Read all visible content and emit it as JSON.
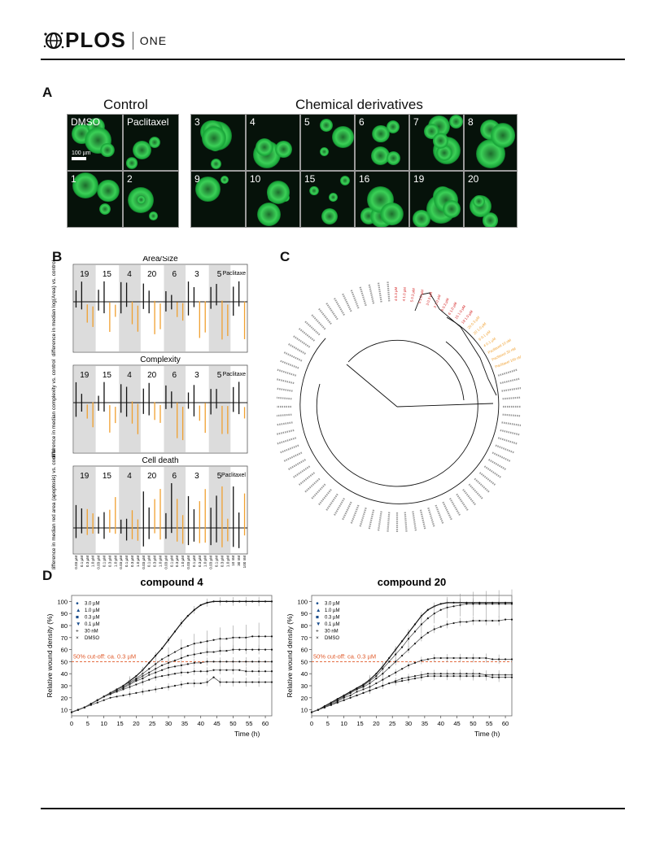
{
  "header": {
    "logo_text": "PLOS",
    "journal": "ONE"
  },
  "panel_a": {
    "letter": "A",
    "control_title": "Control",
    "derivatives_title": "Chemical derivatives",
    "scale_label": "100 µm",
    "tiles": [
      "DMSO",
      "Paclitaxel",
      "3",
      "4",
      "5",
      "6",
      "7",
      "8",
      "1",
      "2",
      "9",
      "10",
      "15",
      "16",
      "19",
      "20"
    ]
  },
  "panel_b": {
    "letter": "B",
    "rows": [
      {
        "title": "Area/Size",
        "ylabel": "difference in median log(Area) vs. control"
      },
      {
        "title": "Complexity",
        "ylabel": "difference in median complexity vs. control"
      },
      {
        "title": "Cell death",
        "ylabel": "difference in median red area (apoptosis) vs. control"
      }
    ],
    "groups": [
      "19",
      "15",
      "4",
      "20",
      "6",
      "3",
      "5"
    ],
    "paclitaxel_labels": [
      "Paclitaxe",
      "Paclitaxe",
      "Paclitaxel"
    ],
    "x_ticks": [
      "0.03 µM",
      "0.1 µM",
      "0.3 µM",
      "1.0 µM",
      "0.03 µM",
      "0.1 µM",
      "0.3 µM",
      "1.0 µM",
      "0.03 µM",
      "0.1 µM",
      "0.3 µM",
      "1.0 µM",
      "0.03 µM",
      "0.1 µM",
      "0.3 µM",
      "1.0 µM",
      "0.03 µM",
      "0.1 µM",
      "0.3 µM",
      "1.0 µM",
      "0.03 µM",
      "0.1 µM",
      "0.3 µM",
      "1.0 µM",
      "0.03 µM",
      "0.1 µM",
      "0.3 µM",
      "1.0 µM",
      "10 nM",
      "30 nM",
      "100 nM"
    ],
    "colors": {
      "black": "#111111",
      "orange": "#f0a030",
      "shade": "#dcdcdc"
    }
  },
  "panel_c": {
    "letter": "C",
    "leaves_right_red": [
      "4 0.3 µM",
      "4 1.0 µM",
      "5 0.3 µM",
      "5 1.0 µM",
      "3 0.3 µM",
      "3 1.0 µM",
      "6 0.3 µM",
      "6 1.0 µM",
      "15 1.0 µM",
      "19 1.0 µM"
    ],
    "leaves_right_orange": [
      "20 0.3 µM",
      "20 1.0 µM",
      "6 0.1 µM",
      "4 0.1 µM",
      "Paclitaxel 10 nM",
      "Paclitaxel 30 nM",
      "Paclitaxel 100 nM"
    ],
    "colors": {
      "red": "#d42020",
      "orange": "#f0a030",
      "gray": "#9a9a9a"
    }
  },
  "panel_d": {
    "letter": "D",
    "legend": [
      "3.0 µM",
      "1.0 µM",
      "0.3 µM",
      "0.1 µM",
      "30 nM",
      "DMSO"
    ],
    "cutoff_label": "50% cut-off: ca. 0.3 µM",
    "ylabel": "Relative wound density (%)",
    "xlabel": "Time (h)",
    "x_ticks": [
      "0",
      "5",
      "10",
      "15",
      "20",
      "25",
      "30",
      "35",
      "40",
      "45",
      "50",
      "55",
      "60"
    ],
    "y_ticks": [
      "10",
      "20",
      "30",
      "40",
      "50",
      "60",
      "70",
      "80",
      "90",
      "100"
    ],
    "cutoff_color": "#e05a2a"
  },
  "chart_data": [
    {
      "type": "line",
      "title": "compound 4",
      "xlabel": "Time (h)",
      "ylabel": "Relative wound density (%)",
      "xlim": [
        0,
        62
      ],
      "ylim": [
        5,
        105
      ],
      "x": [
        0,
        2,
        4,
        6,
        8,
        10,
        12,
        14,
        16,
        18,
        20,
        22,
        24,
        26,
        28,
        30,
        32,
        34,
        36,
        38,
        40,
        42,
        44,
        46,
        48,
        50,
        52,
        54,
        56,
        58,
        60,
        62
      ],
      "series": [
        {
          "name": "DMSO",
          "values": [
            8,
            10,
            12,
            15,
            18,
            21,
            24,
            27,
            30,
            34,
            38,
            43,
            49,
            55,
            61,
            68,
            75,
            82,
            88,
            93,
            97,
            99,
            100,
            100,
            100,
            100,
            100,
            100,
            100,
            100,
            100,
            100
          ]
        },
        {
          "name": "30 nM",
          "values": [
            8,
            10,
            12,
            15,
            18,
            21,
            24,
            27,
            30,
            33,
            36,
            40,
            44,
            48,
            52,
            55,
            58,
            61,
            63,
            65,
            66,
            67,
            68,
            69,
            69,
            70,
            70,
            70,
            71,
            71,
            71,
            71
          ]
        },
        {
          "name": "0.1 µM",
          "values": [
            8,
            10,
            12,
            15,
            18,
            21,
            24,
            27,
            29,
            32,
            35,
            38,
            41,
            44,
            47,
            49,
            51,
            53,
            55,
            56,
            57,
            58,
            58,
            59,
            59,
            60,
            60,
            60,
            60,
            60,
            60,
            60
          ]
        },
        {
          "name": "0.3 µM",
          "values": [
            8,
            10,
            12,
            15,
            18,
            21,
            23,
            26,
            28,
            31,
            34,
            36,
            39,
            41,
            43,
            45,
            46,
            47,
            48,
            49,
            49,
            50,
            50,
            50,
            50,
            50,
            50,
            50,
            50,
            50,
            50,
            50
          ]
        },
        {
          "name": "1.0 µM",
          "values": [
            8,
            10,
            12,
            15,
            18,
            21,
            23,
            25,
            27,
            29,
            31,
            33,
            35,
            37,
            38,
            39,
            40,
            41,
            41,
            42,
            42,
            42,
            43,
            43,
            43,
            43,
            43,
            42,
            42,
            42,
            42,
            42
          ]
        },
        {
          "name": "3.0 µM",
          "values": [
            8,
            10,
            12,
            14,
            16,
            18,
            20,
            21,
            22,
            23,
            24,
            25,
            26,
            27,
            28,
            29,
            30,
            31,
            32,
            32,
            32,
            33,
            37,
            33,
            33,
            33,
            33,
            33,
            33,
            33,
            33,
            33
          ]
        }
      ],
      "cutoff": 50
    },
    {
      "type": "line",
      "title": "compound 20",
      "xlabel": "Time (h)",
      "ylabel": "Relative wound density (%)",
      "xlim": [
        0,
        62
      ],
      "ylim": [
        5,
        105
      ],
      "x": [
        0,
        2,
        4,
        6,
        8,
        10,
        12,
        14,
        16,
        18,
        20,
        22,
        24,
        26,
        28,
        30,
        32,
        34,
        36,
        38,
        40,
        42,
        44,
        46,
        48,
        50,
        52,
        54,
        56,
        58,
        60,
        62
      ],
      "series": [
        {
          "name": "DMSO",
          "values": [
            8,
            10,
            13,
            16,
            19,
            22,
            25,
            28,
            31,
            35,
            40,
            46,
            53,
            60,
            67,
            74,
            81,
            88,
            93,
            96,
            98,
            99,
            99,
            99,
            99,
            99,
            99,
            99,
            99,
            99,
            99,
            99
          ]
        },
        {
          "name": "30 nM",
          "values": [
            8,
            10,
            12,
            15,
            18,
            21,
            24,
            27,
            30,
            34,
            38,
            44,
            50,
            56,
            62,
            69,
            75,
            81,
            86,
            90,
            93,
            95,
            96,
            97,
            98,
            98,
            98,
            98,
            98,
            98,
            98,
            98
          ]
        },
        {
          "name": "0.1 µM",
          "values": [
            8,
            10,
            12,
            15,
            18,
            21,
            24,
            27,
            29,
            32,
            36,
            40,
            45,
            50,
            55,
            60,
            65,
            70,
            74,
            77,
            79,
            81,
            82,
            83,
            83,
            84,
            84,
            84,
            84,
            84,
            85,
            85
          ]
        },
        {
          "name": "0.3 µM",
          "values": [
            8,
            10,
            12,
            14,
            17,
            20,
            22,
            25,
            27,
            29,
            32,
            35,
            38,
            41,
            44,
            47,
            49,
            51,
            52,
            53,
            53,
            53,
            53,
            53,
            53,
            53,
            53,
            53,
            52,
            52,
            52,
            52
          ]
        },
        {
          "name": "1.0 µM",
          "values": [
            8,
            10,
            12,
            14,
            16,
            18,
            20,
            22,
            24,
            26,
            28,
            30,
            32,
            34,
            36,
            37,
            38,
            39,
            40,
            40,
            40,
            40,
            40,
            40,
            40,
            40,
            40,
            39,
            39,
            39,
            39,
            39
          ]
        },
        {
          "name": "3.0 µM",
          "values": [
            8,
            10,
            12,
            14,
            16,
            18,
            20,
            22,
            24,
            26,
            28,
            30,
            32,
            33,
            34,
            35,
            36,
            37,
            38,
            38,
            38,
            38,
            38,
            38,
            38,
            38,
            38,
            38,
            37,
            37,
            37,
            37
          ]
        }
      ],
      "cutoff": 50
    }
  ]
}
